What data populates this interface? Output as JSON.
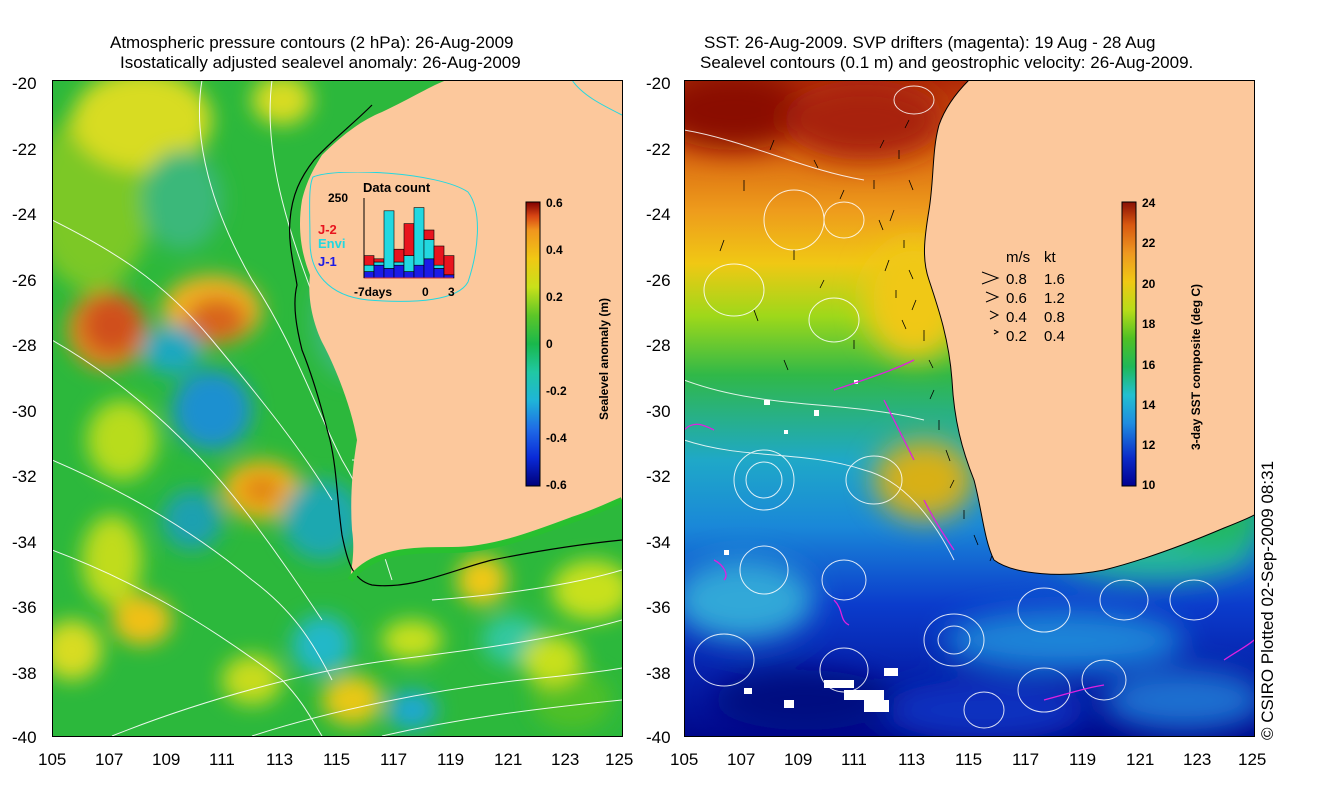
{
  "left_panel": {
    "title_line1": "Atmospheric pressure contours (2 hPa): 26-Aug-2009",
    "title_line2": "Isostatically adjusted sealevel anomaly: 26-Aug-2009",
    "y_ticks": [
      "-20",
      "-22",
      "-24",
      "-26",
      "-28",
      "-30",
      "-32",
      "-34",
      "-36",
      "-38",
      "-40"
    ],
    "x_ticks": [
      "105",
      "107",
      "109",
      "111",
      "113",
      "115",
      "117",
      "119",
      "121",
      "123",
      "125"
    ],
    "colorbar": {
      "label": "Sealevel anomaly (m)",
      "ticks": [
        "0.6",
        "0.4",
        "0.2",
        "0",
        "-0.2",
        "-0.4",
        "-0.6"
      ]
    },
    "inset": {
      "title": "Data count",
      "ymax_label": "250",
      "x_labels": [
        "-7days",
        "0",
        "3"
      ],
      "legend": [
        {
          "name": "J-2",
          "color": "#e8141e"
        },
        {
          "name": "Envi",
          "color": "#22d8e0"
        },
        {
          "name": "J-1",
          "color": "#1a1ae6"
        }
      ],
      "bars": [
        {
          "j1": 20,
          "envi": 20,
          "j2": 30
        },
        {
          "j1": 40,
          "envi": 10,
          "j2": 10
        },
        {
          "j1": 30,
          "envi": 180,
          "j2": 0
        },
        {
          "j1": 40,
          "envi": 10,
          "j2": 40
        },
        {
          "j1": 20,
          "envi": 50,
          "j2": 100
        },
        {
          "j1": 40,
          "envi": 180,
          "j2": 0
        },
        {
          "j1": 60,
          "envi": 60,
          "j2": 30
        },
        {
          "j1": 30,
          "envi": 10,
          "j2": 60
        },
        {
          "j1": 10,
          "envi": 0,
          "j2": 60
        }
      ]
    }
  },
  "right_panel": {
    "title_line1": "SST: 26-Aug-2009. SVP drifters (magenta): 19 Aug - 28 Aug",
    "title_line2": "Sealevel contours (0.1 m) and geostrophic velocity: 26-Aug-2009.",
    "y_ticks": [
      "-20",
      "-22",
      "-24",
      "-26",
      "-28",
      "-30",
      "-32",
      "-34",
      "-36",
      "-38",
      "-40"
    ],
    "x_ticks": [
      "105",
      "107",
      "109",
      "111",
      "113",
      "115",
      "117",
      "119",
      "121",
      "123",
      "125"
    ],
    "colorbar": {
      "label": "3-day SST composite (deg C)",
      "ticks": [
        "24",
        "22",
        "20",
        "18",
        "16",
        "14",
        "12",
        "10"
      ]
    },
    "velocity_key": {
      "header_ms": "m/s",
      "header_kt": "kt",
      "rows": [
        {
          "ms": "0.8",
          "kt": "1.6"
        },
        {
          "ms": "0.6",
          "kt": "1.2"
        },
        {
          "ms": "0.4",
          "kt": "0.8"
        },
        {
          "ms": "0.2",
          "kt": "0.4"
        }
      ]
    }
  },
  "credit": "© CSIRO Plotted 02-Sep-2009 08:31",
  "colors": {
    "land": "#fcc89c",
    "sla_scale": [
      "#00007a",
      "#0a2ad8",
      "#1f9be6",
      "#20c8a4",
      "#19b84c",
      "#5cc628",
      "#c8e01a",
      "#f0c814",
      "#f0961e",
      "#d84614",
      "#800000"
    ],
    "sst_scale": [
      "#000090",
      "#0b2cc8",
      "#1f8ce0",
      "#22c0d0",
      "#20b858",
      "#50c024",
      "#b8dc18",
      "#f0c814",
      "#ee9820",
      "#d85810",
      "#8a1004"
    ],
    "drifter": "#e020e0"
  }
}
